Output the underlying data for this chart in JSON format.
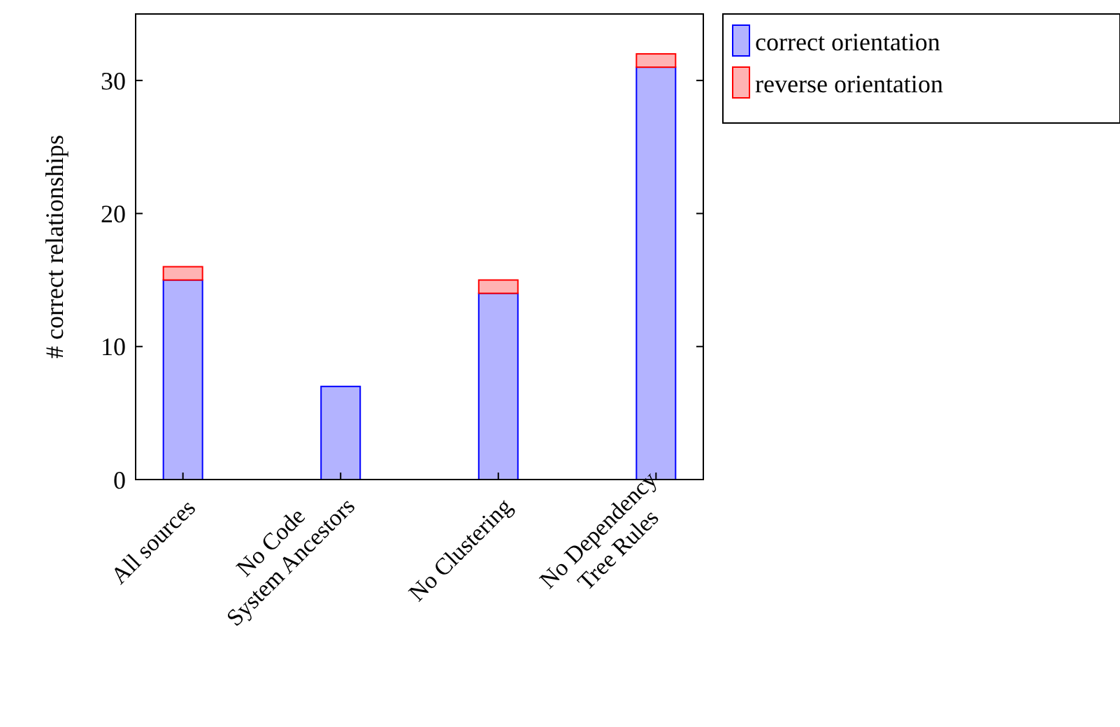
{
  "chart_data": {
    "type": "bar",
    "ylabel": "# correct relationships",
    "categories": [
      "All sources",
      "No Code\nSystem Ancestors",
      "No Clustering",
      "No Dependency\nTree Rules"
    ],
    "series": [
      {
        "name": "correct orientation",
        "color": "#b3b3ff",
        "values": [
          15,
          7,
          14,
          31
        ]
      },
      {
        "name": "reverse orientation",
        "color": "#ffb3b3",
        "values": [
          1,
          0,
          1,
          1
        ]
      }
    ],
    "stacked": true,
    "ylim": [
      0,
      35
    ],
    "yticks": [
      0,
      10,
      20,
      30
    ],
    "grid": false,
    "legend": "top right"
  }
}
